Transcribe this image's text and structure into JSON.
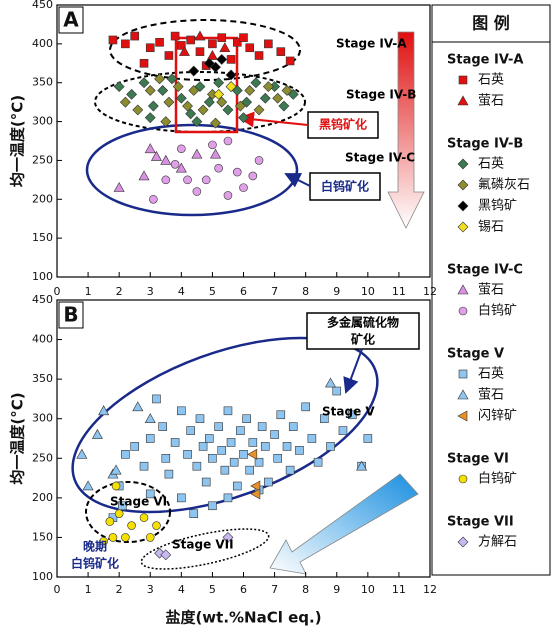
{
  "legend_title": "图 例",
  "chart_data": [
    {
      "type": "scatter",
      "label": "A",
      "ylabel": "均一温度(°C)",
      "xlim": [
        0,
        12
      ],
      "ylim": [
        100,
        450
      ],
      "xticks": [
        0,
        1,
        2,
        3,
        4,
        5,
        6,
        7,
        8,
        9,
        10,
        11,
        12
      ],
      "yticks": [
        100,
        150,
        200,
        250,
        300,
        350,
        400,
        450
      ],
      "annotations": [
        "Stage IV-A",
        "Stage IV-B",
        "Stage IV-C",
        "黑钨矿化",
        "白钨矿化"
      ],
      "groups": [
        {
          "name": "Stage IV-A",
          "series": [
            {
              "name": "石英",
              "marker": "square",
              "color": "#e01010",
              "x": [
                1.8,
                2.2,
                2.5,
                3.0,
                3.3,
                3.6,
                4.0,
                4.3,
                4.6,
                5.0,
                5.3,
                5.6,
                5.8,
                6.2,
                6.5,
                6.8,
                7.2,
                7.5,
                2.8,
                4.8,
                3.8,
                6.0
              ],
              "values": [
                405,
                400,
                410,
                395,
                402,
                385,
                398,
                405,
                390,
                400,
                408,
                380,
                402,
                395,
                385,
                400,
                390,
                378,
                375,
                372,
                410,
                408
              ]
            },
            {
              "name": "萤石",
              "marker": "triangle",
              "color": "#e01010",
              "x": [
                4.1,
                4.6,
                5.0,
                5.4
              ],
              "values": [
                390,
                410,
                385,
                395
              ]
            }
          ]
        },
        {
          "name": "Stage IV-B",
          "series": [
            {
              "name": "石英",
              "marker": "diamond",
              "color": "#3d7a52",
              "x": [
                2.0,
                2.4,
                2.8,
                3.1,
                3.4,
                3.7,
                4.0,
                4.3,
                4.6,
                4.9,
                5.2,
                5.5,
                5.8,
                6.1,
                6.4,
                6.7,
                7.0,
                7.3,
                7.6,
                3.0,
                4.5,
                6.0
              ],
              "values": [
                345,
                335,
                350,
                320,
                340,
                355,
                330,
                310,
                345,
                325,
                350,
                315,
                340,
                325,
                350,
                330,
                345,
                320,
                335,
                305,
                300,
                305
              ]
            },
            {
              "name": "氟磷灰石",
              "marker": "diamond",
              "color": "#8c8c30",
              "x": [
                2.2,
                2.6,
                3.0,
                3.3,
                3.6,
                3.9,
                4.2,
                4.4,
                4.7,
                5.0,
                5.3,
                5.6,
                5.9,
                6.2,
                6.5,
                6.8,
                7.1,
                7.4,
                3.5,
                5.1
              ],
              "values": [
                325,
                315,
                340,
                355,
                325,
                345,
                320,
                340,
                315,
                335,
                325,
                345,
                320,
                340,
                315,
                345,
                330,
                340,
                300,
                298
              ]
            },
            {
              "name": "黑钨矿",
              "marker": "diamond",
              "color": "#000000",
              "x": [
                4.9,
                5.1,
                5.3,
                4.4,
                5.6
              ],
              "values": [
                375,
                370,
                380,
                365,
                360
              ]
            },
            {
              "name": "锡石",
              "marker": "diamond",
              "color": "#f0e020",
              "x": [
                5.6,
                5.2
              ],
              "values": [
                345,
                335
              ]
            }
          ]
        },
        {
          "name": "Stage IV-C",
          "series": [
            {
              "name": "萤石",
              "marker": "triangle",
              "color": "#d890e0",
              "x": [
                2.0,
                2.8,
                3.2,
                3.5,
                4.0,
                4.5,
                3.0,
                5.1
              ],
              "values": [
                215,
                230,
                255,
                250,
                240,
                258,
                265,
                258
              ]
            },
            {
              "name": "白钨矿",
              "marker": "circle",
              "color": "#e0a0e8",
              "x": [
                3.8,
                4.2,
                4.5,
                4.8,
                5.2,
                5.5,
                5.8,
                6.0,
                6.3,
                4.0,
                5.0,
                6.5,
                3.1,
                3.5,
                5.5
              ],
              "values": [
                245,
                225,
                210,
                225,
                240,
                205,
                235,
                215,
                230,
                265,
                270,
                250,
                200,
                225,
                275
              ]
            }
          ]
        }
      ]
    },
    {
      "type": "scatter",
      "label": "B",
      "ylabel": "均一温度(°C)",
      "xlabel": "盐度(wt.%NaCl eq.)",
      "xlim": [
        0,
        12
      ],
      "ylim": [
        100,
        450
      ],
      "xticks": [
        0,
        1,
        2,
        3,
        4,
        5,
        6,
        7,
        8,
        9,
        10,
        11,
        12
      ],
      "yticks": [
        100,
        150,
        200,
        250,
        300,
        350,
        400,
        450
      ],
      "annotations": [
        "多金属硫化物",
        "矿化",
        "Stage V",
        "Stage VI",
        "Stage VII",
        "晚期",
        "白钨矿化"
      ],
      "groups": [
        {
          "name": "Stage V",
          "series": [
            {
              "name": "石英",
              "marker": "square",
              "color": "#8ec5f0",
              "x": [
                1.8,
                2.0,
                2.2,
                2.5,
                2.8,
                3.0,
                3.2,
                3.4,
                3.5,
                3.6,
                3.8,
                4.0,
                4.0,
                4.2,
                4.3,
                4.5,
                4.6,
                4.7,
                4.8,
                4.9,
                5.0,
                5.0,
                5.2,
                5.3,
                5.4,
                5.5,
                5.6,
                5.7,
                5.8,
                5.9,
                6.0,
                6.1,
                6.2,
                6.3,
                6.5,
                6.6,
                6.7,
                6.8,
                7.0,
                7.1,
                7.2,
                7.4,
                7.5,
                7.6,
                7.8,
                8.0,
                8.2,
                8.4,
                8.6,
                8.8,
                9.0,
                9.2,
                9.5,
                10.0,
                9.8,
                2.1,
                3.0,
                6.5,
                4.4,
                5.5
              ],
              "values": [
                175,
                215,
                255,
                265,
                240,
                275,
                325,
                290,
                250,
                230,
                270,
                310,
                200,
                255,
                285,
                240,
                300,
                265,
                220,
                275,
                250,
                190,
                290,
                260,
                235,
                310,
                270,
                245,
                215,
                285,
                255,
                300,
                235,
                270,
                245,
                290,
                265,
                220,
                280,
                250,
                305,
                265,
                235,
                290,
                260,
                315,
                275,
                245,
                300,
                265,
                335,
                285,
                305,
                275,
                240,
                190,
                205,
                210,
                180,
                200
              ]
            },
            {
              "name": "萤石",
              "marker": "triangle",
              "color": "#8ec5f0",
              "x": [
                0.8,
                1.0,
                1.3,
                1.5,
                1.8,
                1.9,
                2.6,
                3.0,
                9.8,
                8.8
              ],
              "values": [
                255,
                215,
                280,
                310,
                230,
                235,
                315,
                300,
                240,
                345
              ]
            },
            {
              "name": "闪锌矿",
              "marker": "tri-left",
              "color": "#e8902c",
              "x": [
                6.3,
                6.4,
                6.4
              ],
              "values": [
                255,
                215,
                205
              ]
            }
          ]
        },
        {
          "name": "Stage VI",
          "series": [
            {
              "name": "白钨矿",
              "marker": "circle",
              "color": "#f5e000",
              "x": [
                1.9,
                2.0,
                1.7,
                2.4,
                2.8,
                3.2,
                2.2,
                1.8,
                3.0,
                1.5
              ],
              "values": [
                215,
                180,
                170,
                165,
                175,
                165,
                150,
                150,
                150,
                145
              ]
            }
          ]
        },
        {
          "name": "Stage VII",
          "series": [
            {
              "name": "方解石",
              "marker": "diamond",
              "color": "#c8b8f0",
              "x": [
                3.3,
                3.5,
                5.5
              ],
              "values": [
                130,
                128,
                150
              ]
            }
          ]
        }
      ]
    }
  ]
}
